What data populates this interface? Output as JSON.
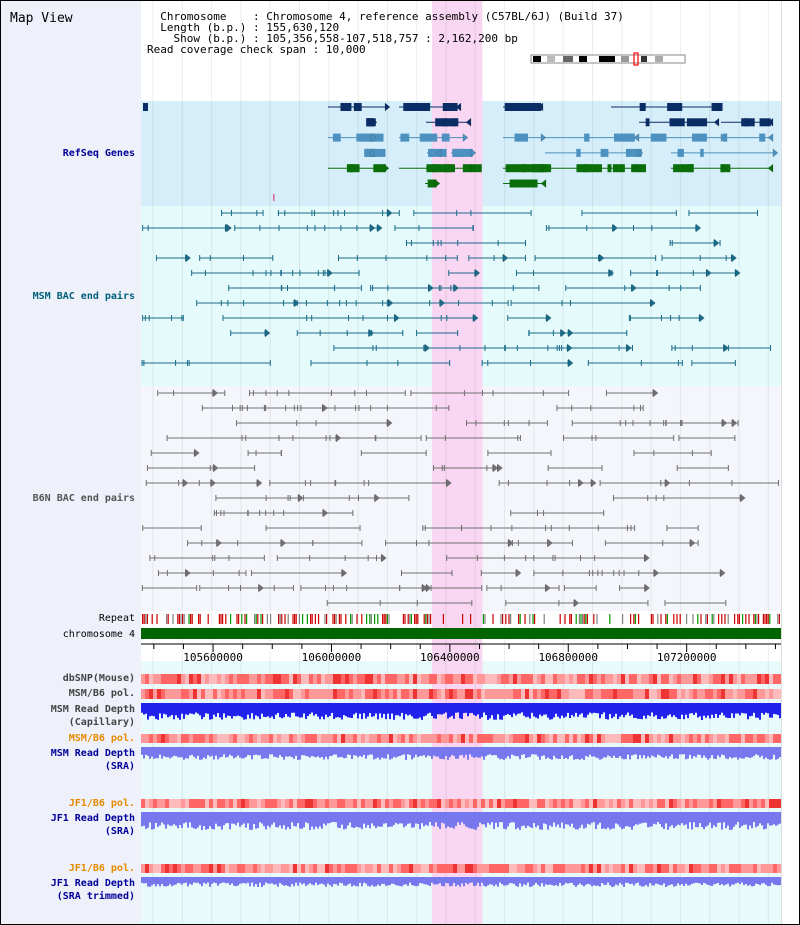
{
  "page": {
    "title": "Map View"
  },
  "info": {
    "chromosome_label": "Chromosome",
    "chromosome_value": "Chromosome 4, reference assembly (C57BL/6J) (Build 37)",
    "length_label": "Length (b.p.)",
    "length_value": "155,630,120",
    "show_label": "Show (b.p.)",
    "show_value": "105,356,558-107,518,757 : 2,162,200 bp",
    "coverage_label": "Read coverage check span",
    "coverage_value": "10,000"
  },
  "tracks": {
    "refseq": "RefSeq Genes",
    "msm_bac": "MSM BAC end pairs",
    "b6n_bac": "B6N BAC end pairs",
    "repeat": "Repeat",
    "chromosome": "chromosome 4",
    "dbsnp": "dbSNP(Mouse)",
    "msm_b6_pol": "MSM/B6 pol.",
    "msm_depth_cap_1": "MSM Read Depth",
    "msm_depth_cap_2": "(Capillary)",
    "msm_b6_pol_2": "MSM/B6 pol.",
    "msm_depth_sra_1": "MSM Read Depth",
    "msm_depth_sra_2": "(SRA)",
    "jf1_b6_pol": "JF1/B6 pol.",
    "jf1_depth_sra_1": "JF1 Read Depth",
    "jf1_depth_sra_2": "(SRA)",
    "jf1_b6_pol_2": "JF1/B6 pol.",
    "jf1_depth_trim_1": "JF1 Read Depth",
    "jf1_depth_trim_2": "(SRA trimmed)"
  },
  "axis": {
    "view_start": 105356558,
    "view_end": 107518757,
    "ticks": [
      "105600000",
      "106000000",
      "106400000",
      "106800000",
      "107200000"
    ],
    "highlight_range": [
      106340000,
      106510000
    ]
  },
  "colors": {
    "refseq_bg": "#d6eef9",
    "msm_bac_bg": "#e5fafa",
    "b6n_bac_bg": "#f4f6fb",
    "highlight": "#f9d6f2",
    "refseq_dark": "#0b2d66",
    "refseq_mid": "#4d91c0",
    "refseq_green": "#0a6e0a",
    "msm_pair": "#1a6b8a",
    "b6n_pair": "#707070",
    "chromosome_bar": "#006400",
    "msm_read_depth": "#2222ee",
    "sra_read_depth": "#7777ee",
    "orange_label": "#e68a00",
    "navy_label": "#000099",
    "teal_label": "#00607a"
  }
}
